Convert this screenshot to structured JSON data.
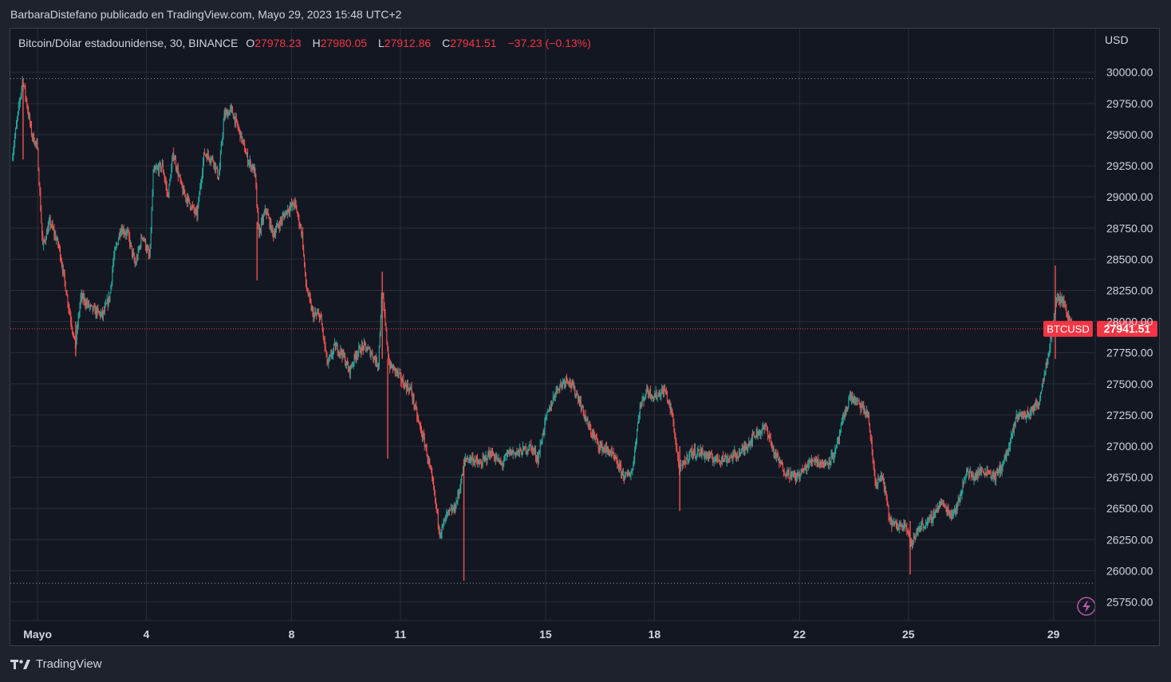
{
  "publish_line": "BarbaraDistefano publicado en TradingView.com, Mayo 29, 2023 15:48 UTC+2",
  "legend": {
    "symbol": "Bitcoin/Dólar estadounidense, 30, BINANCE",
    "o_label": "O",
    "o_value": "27978.23",
    "h_label": "H",
    "h_value": "27980.05",
    "l_label": "L",
    "l_value": "27912.86",
    "c_label": "C",
    "c_value": "27941.51",
    "change": "−37.23 (−0.13%)"
  },
  "footer": {
    "brand": "TradingView"
  },
  "colors": {
    "up": "#26a69a",
    "down": "#ef5350",
    "grid": "#2a2e39",
    "background": "#131722",
    "price_line": "#f23645",
    "text": "#d1d4dc"
  },
  "chart_data": {
    "type": "candlestick",
    "currency_label": "USD",
    "y_ticks": [
      "30000.00",
      "29750.00",
      "29500.00",
      "29250.00",
      "29000.00",
      "28750.00",
      "28500.00",
      "28250.00",
      "28000.00",
      "27750.00",
      "27500.00",
      "27250.00",
      "27000.00",
      "26750.00",
      "26500.00",
      "26250.00",
      "26000.00",
      "25750.00"
    ],
    "x_ticks": [
      {
        "label": "Mayo",
        "day": 1
      },
      {
        "label": "4",
        "day": 4
      },
      {
        "label": "8",
        "day": 8
      },
      {
        "label": "11",
        "day": 11
      },
      {
        "label": "15",
        "day": 15
      },
      {
        "label": "18",
        "day": 18
      },
      {
        "label": "22",
        "day": 22
      },
      {
        "label": "25",
        "day": 25
      },
      {
        "label": "29",
        "day": 29
      }
    ],
    "ylim": [
      25600,
      30350
    ],
    "xlim_days": [
      0.25,
      30.15
    ],
    "last_price": 27941.51,
    "last_price_label": "27941.51",
    "last_price_symbol": "BTCUSD",
    "range_high": 29950,
    "range_low": 25900,
    "path_points": [
      [
        0.3,
        29300
      ],
      [
        0.6,
        29950
      ],
      [
        0.85,
        29500
      ],
      [
        1.0,
        29400
      ],
      [
        1.15,
        28600
      ],
      [
        1.35,
        28800
      ],
      [
        1.6,
        28600
      ],
      [
        1.85,
        28150
      ],
      [
        2.05,
        27800
      ],
      [
        2.2,
        28200
      ],
      [
        2.5,
        28100
      ],
      [
        2.8,
        28050
      ],
      [
        3.0,
        28200
      ],
      [
        3.1,
        28500
      ],
      [
        3.3,
        28750
      ],
      [
        3.5,
        28700
      ],
      [
        3.7,
        28450
      ],
      [
        3.9,
        28700
      ],
      [
        4.1,
        28500
      ],
      [
        4.2,
        29200
      ],
      [
        4.45,
        29250
      ],
      [
        4.6,
        29000
      ],
      [
        4.75,
        29350
      ],
      [
        5.0,
        29050
      ],
      [
        5.2,
        28950
      ],
      [
        5.4,
        28850
      ],
      [
        5.6,
        29350
      ],
      [
        5.85,
        29300
      ],
      [
        6.0,
        29150
      ],
      [
        6.15,
        29650
      ],
      [
        6.35,
        29700
      ],
      [
        6.6,
        29500
      ],
      [
        6.8,
        29300
      ],
      [
        7.0,
        29200
      ],
      [
        7.1,
        28700
      ],
      [
        7.3,
        28900
      ],
      [
        7.5,
        28700
      ],
      [
        7.7,
        28800
      ],
      [
        7.9,
        28900
      ],
      [
        8.1,
        28950
      ],
      [
        8.3,
        28700
      ],
      [
        8.4,
        28300
      ],
      [
        8.6,
        28050
      ],
      [
        8.8,
        28050
      ],
      [
        9.0,
        27650
      ],
      [
        9.2,
        27800
      ],
      [
        9.4,
        27750
      ],
      [
        9.6,
        27600
      ],
      [
        9.8,
        27750
      ],
      [
        10.0,
        27800
      ],
      [
        10.2,
        27750
      ],
      [
        10.4,
        27650
      ],
      [
        10.5,
        28250
      ],
      [
        10.7,
        27650
      ],
      [
        10.9,
        27600
      ],
      [
        11.1,
        27500
      ],
      [
        11.3,
        27450
      ],
      [
        11.5,
        27200
      ],
      [
        11.7,
        27000
      ],
      [
        11.9,
        26700
      ],
      [
        12.1,
        26300
      ],
      [
        12.3,
        26450
      ],
      [
        12.5,
        26500
      ],
      [
        12.6,
        26600
      ],
      [
        12.8,
        26900
      ],
      [
        13.0,
        26900
      ],
      [
        13.2,
        26850
      ],
      [
        13.5,
        26950
      ],
      [
        13.8,
        26850
      ],
      [
        14.0,
        26950
      ],
      [
        14.3,
        26950
      ],
      [
        14.6,
        27000
      ],
      [
        14.8,
        26900
      ],
      [
        15.0,
        27200
      ],
      [
        15.3,
        27450
      ],
      [
        15.6,
        27550
      ],
      [
        15.9,
        27400
      ],
      [
        16.2,
        27150
      ],
      [
        16.5,
        27000
      ],
      [
        16.8,
        26950
      ],
      [
        17.0,
        26850
      ],
      [
        17.2,
        26750
      ],
      [
        17.4,
        26800
      ],
      [
        17.6,
        27300
      ],
      [
        17.8,
        27450
      ],
      [
        18.0,
        27400
      ],
      [
        18.3,
        27450
      ],
      [
        18.5,
        27250
      ],
      [
        18.7,
        26800
      ],
      [
        19.0,
        26950
      ],
      [
        19.3,
        26950
      ],
      [
        19.6,
        26900
      ],
      [
        20.0,
        26900
      ],
      [
        20.4,
        26950
      ],
      [
        20.8,
        27100
      ],
      [
        21.1,
        27150
      ],
      [
        21.3,
        26950
      ],
      [
        21.6,
        26800
      ],
      [
        21.9,
        26750
      ],
      [
        22.1,
        26800
      ],
      [
        22.4,
        26900
      ],
      [
        22.7,
        26850
      ],
      [
        23.0,
        26950
      ],
      [
        23.2,
        27200
      ],
      [
        23.4,
        27400
      ],
      [
        23.6,
        27350
      ],
      [
        23.9,
        27250
      ],
      [
        24.1,
        26700
      ],
      [
        24.3,
        26750
      ],
      [
        24.5,
        26400
      ],
      [
        24.7,
        26350
      ],
      [
        24.9,
        26400
      ],
      [
        25.1,
        26200
      ],
      [
        25.3,
        26350
      ],
      [
        25.6,
        26400
      ],
      [
        25.9,
        26550
      ],
      [
        26.2,
        26450
      ],
      [
        26.4,
        26550
      ],
      [
        26.6,
        26800
      ],
      [
        26.8,
        26750
      ],
      [
        27.0,
        26800
      ],
      [
        27.2,
        26800
      ],
      [
        27.4,
        26750
      ],
      [
        27.6,
        26850
      ],
      [
        27.8,
        27000
      ],
      [
        28.0,
        27250
      ],
      [
        28.3,
        27250
      ],
      [
        28.6,
        27350
      ],
      [
        28.9,
        27800
      ],
      [
        29.1,
        28200
      ],
      [
        29.3,
        28150
      ],
      [
        29.45,
        28000
      ],
      [
        29.6,
        27941.51
      ]
    ],
    "spikes": [
      {
        "day": 0.6,
        "high": 29950,
        "low": 29300
      },
      {
        "day": 2.05,
        "high": 28000,
        "low": 27720
      },
      {
        "day": 7.05,
        "high": 28800,
        "low": 28330
      },
      {
        "day": 10.5,
        "high": 28400,
        "low": 27700
      },
      {
        "day": 10.65,
        "high": 27700,
        "low": 26900
      },
      {
        "day": 12.75,
        "high": 26900,
        "low": 25920
      },
      {
        "day": 18.7,
        "high": 27000,
        "low": 26480
      },
      {
        "day": 25.05,
        "high": 26400,
        "low": 25970
      },
      {
        "day": 29.05,
        "high": 28450,
        "low": 27700
      }
    ]
  }
}
